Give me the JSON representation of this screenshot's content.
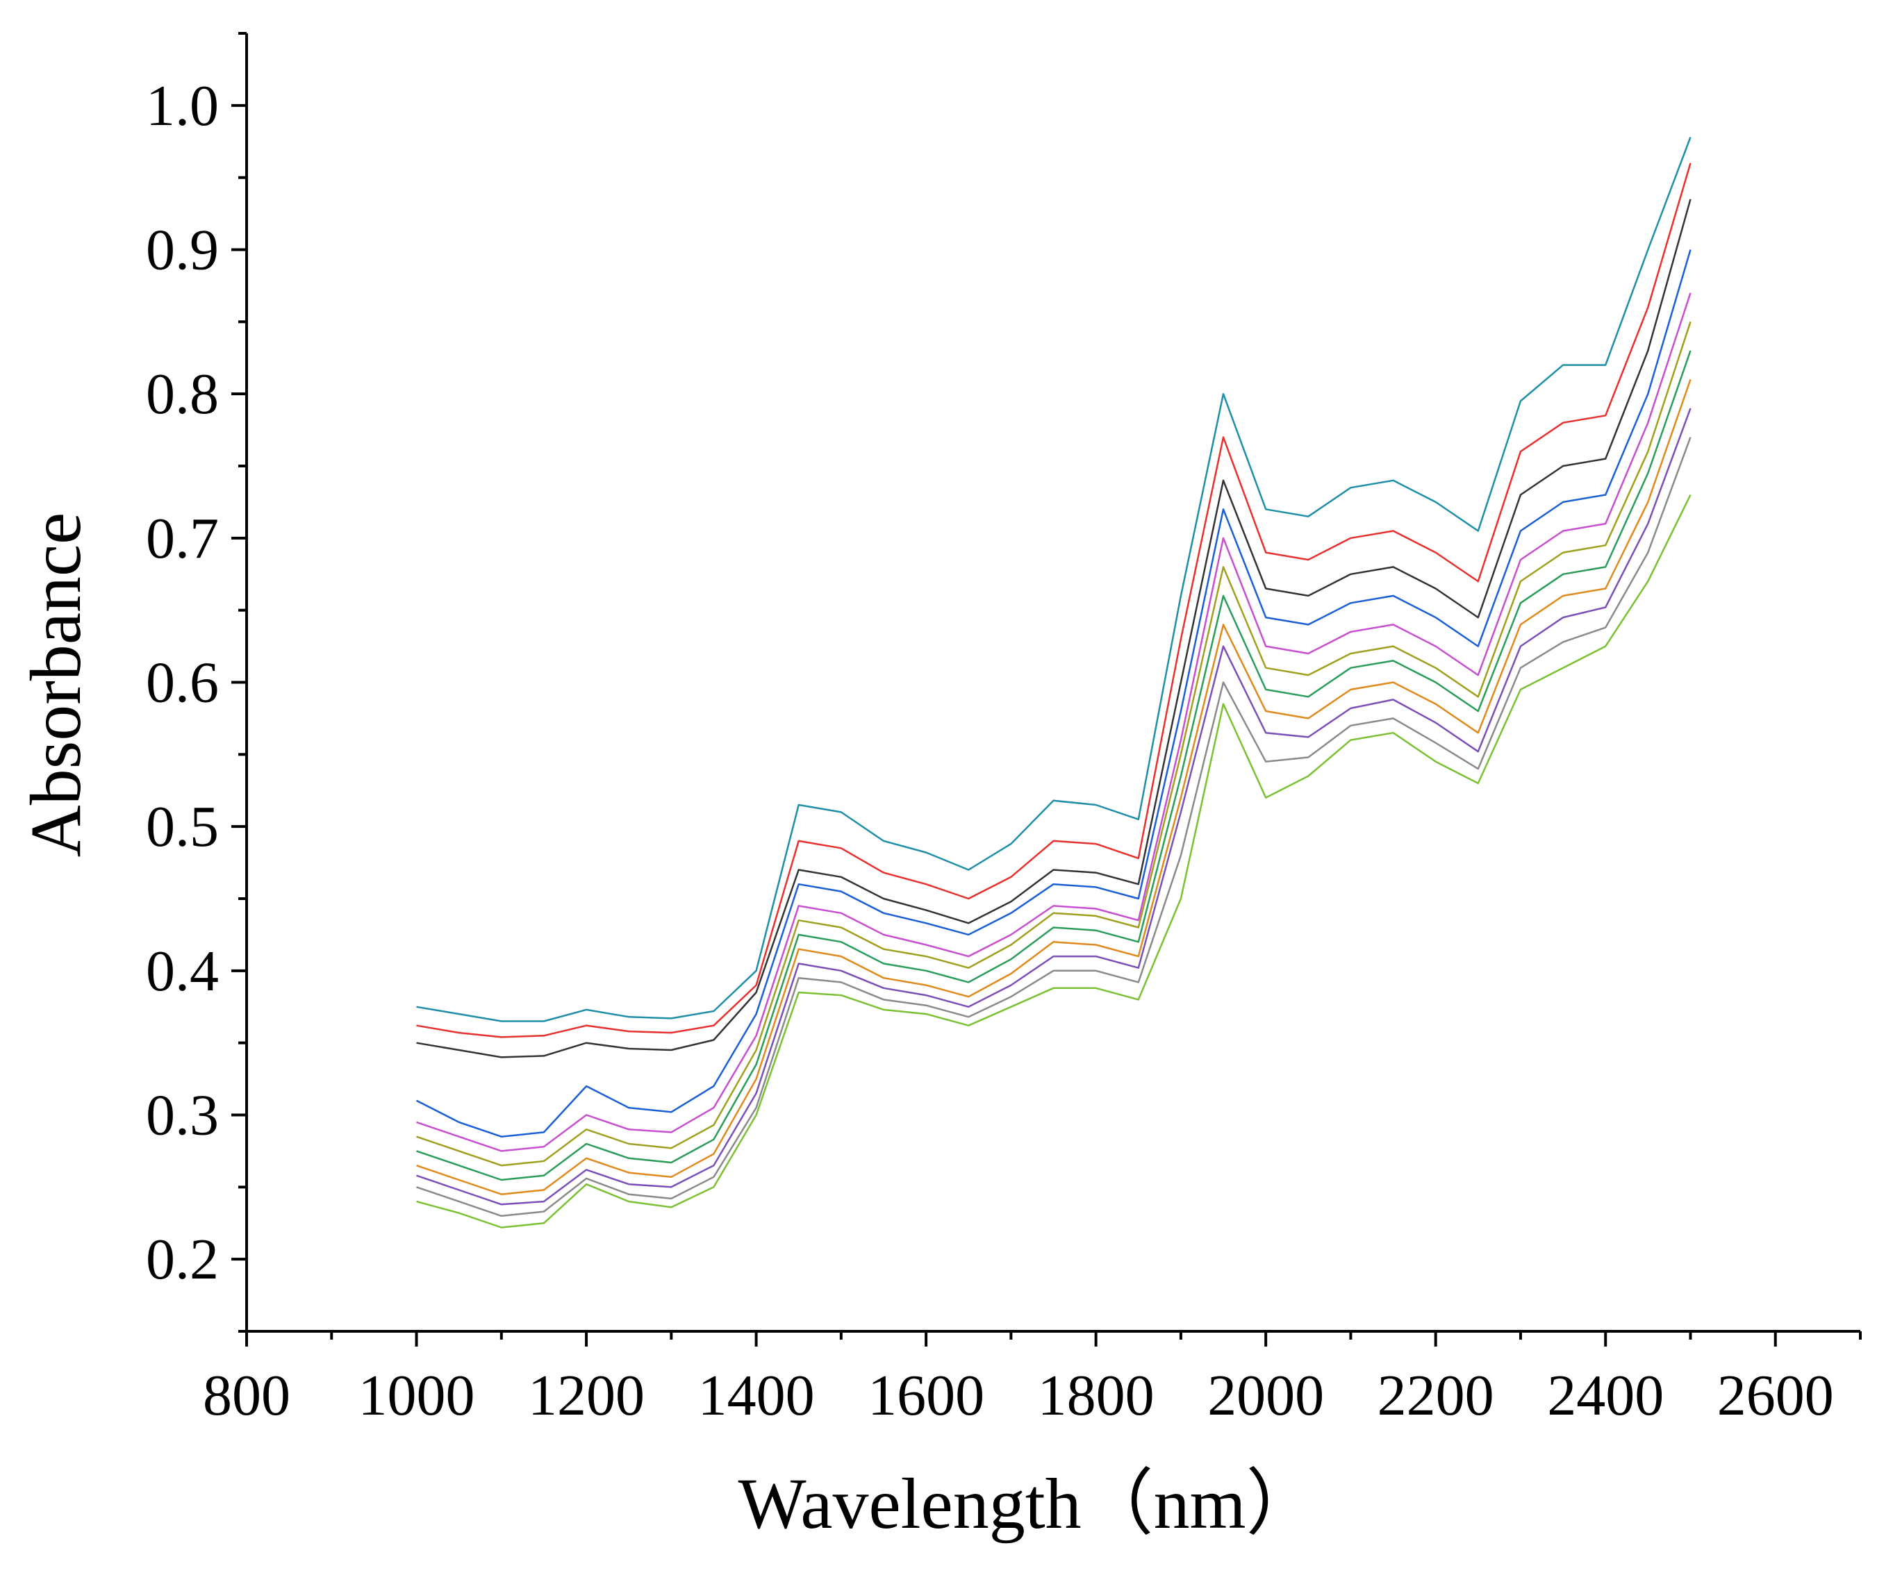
{
  "chart_data": {
    "type": "line",
    "x_label": "Wavelength（nm）",
    "y_label": "Absorbance",
    "x": [
      1000,
      1050,
      1100,
      1150,
      1200,
      1250,
      1300,
      1350,
      1400,
      1450,
      1500,
      1550,
      1600,
      1650,
      1700,
      1750,
      1800,
      1850,
      1900,
      1950,
      2000,
      2050,
      2100,
      2150,
      2200,
      2250,
      2300,
      2350,
      2400,
      2450,
      2500
    ],
    "xlim": [
      800,
      2700
    ],
    "xticks": [
      800,
      1000,
      1200,
      1400,
      1600,
      1800,
      2000,
      2200,
      2400,
      2600
    ],
    "ylim": [
      0.15,
      1.05
    ],
    "yticks": [
      0.2,
      0.3,
      0.4,
      0.5,
      0.6,
      0.7,
      0.8,
      0.9,
      {
        "value": 1,
        "label": "1.0"
      }
    ],
    "series": [
      {
        "color": "#1f8fa8",
        "values": [
          0.375,
          0.37,
          0.365,
          0.365,
          0.373,
          0.368,
          0.367,
          0.372,
          0.4,
          0.515,
          0.51,
          0.49,
          0.482,
          0.47,
          0.488,
          0.518,
          0.515,
          0.505,
          0.66,
          0.8,
          0.72,
          0.715,
          0.735,
          0.74,
          0.725,
          0.705,
          0.795,
          0.82,
          0.82,
          0.9,
          0.978
        ]
      },
      {
        "color": "#e8312f",
        "values": [
          0.362,
          0.357,
          0.354,
          0.355,
          0.362,
          0.358,
          0.357,
          0.362,
          0.39,
          0.49,
          0.485,
          0.468,
          0.46,
          0.45,
          0.465,
          0.49,
          0.488,
          0.478,
          0.63,
          0.77,
          0.69,
          0.685,
          0.7,
          0.705,
          0.69,
          0.67,
          0.76,
          0.78,
          0.785,
          0.86,
          0.96
        ]
      },
      {
        "color": "#333333",
        "values": [
          0.35,
          0.345,
          0.34,
          0.341,
          0.35,
          0.346,
          0.345,
          0.352,
          0.385,
          0.47,
          0.465,
          0.45,
          0.442,
          0.433,
          0.448,
          0.47,
          0.468,
          0.46,
          0.6,
          0.74,
          0.665,
          0.66,
          0.675,
          0.68,
          0.665,
          0.645,
          0.73,
          0.75,
          0.755,
          0.83,
          0.935
        ]
      },
      {
        "color": "#1a5fd6",
        "values": [
          0.31,
          0.295,
          0.285,
          0.288,
          0.32,
          0.305,
          0.302,
          0.32,
          0.37,
          0.46,
          0.455,
          0.44,
          0.433,
          0.425,
          0.44,
          0.46,
          0.458,
          0.45,
          0.58,
          0.72,
          0.645,
          0.64,
          0.655,
          0.66,
          0.645,
          0.625,
          0.705,
          0.725,
          0.73,
          0.8,
          0.9
        ]
      },
      {
        "color": "#c84fd0",
        "values": [
          0.295,
          0.285,
          0.275,
          0.278,
          0.3,
          0.29,
          0.288,
          0.305,
          0.355,
          0.445,
          0.44,
          0.425,
          0.418,
          0.41,
          0.425,
          0.445,
          0.443,
          0.435,
          0.56,
          0.7,
          0.625,
          0.62,
          0.635,
          0.64,
          0.625,
          0.605,
          0.685,
          0.705,
          0.71,
          0.78,
          0.87
        ]
      },
      {
        "color": "#a0a020",
        "values": [
          0.285,
          0.275,
          0.265,
          0.268,
          0.29,
          0.28,
          0.277,
          0.293,
          0.345,
          0.435,
          0.43,
          0.415,
          0.41,
          0.402,
          0.418,
          0.44,
          0.438,
          0.43,
          0.55,
          0.68,
          0.61,
          0.605,
          0.62,
          0.625,
          0.61,
          0.59,
          0.67,
          0.69,
          0.695,
          0.76,
          0.85
        ]
      },
      {
        "color": "#2a9d5a",
        "values": [
          0.275,
          0.265,
          0.255,
          0.258,
          0.28,
          0.27,
          0.267,
          0.283,
          0.335,
          0.425,
          0.42,
          0.405,
          0.4,
          0.392,
          0.408,
          0.43,
          0.428,
          0.42,
          0.535,
          0.66,
          0.595,
          0.59,
          0.61,
          0.615,
          0.6,
          0.58,
          0.655,
          0.675,
          0.68,
          0.745,
          0.83
        ]
      },
      {
        "color": "#e08a1e",
        "values": [
          0.265,
          0.255,
          0.245,
          0.248,
          0.27,
          0.26,
          0.257,
          0.273,
          0.325,
          0.415,
          0.41,
          0.395,
          0.39,
          0.382,
          0.398,
          0.42,
          0.418,
          0.41,
          0.52,
          0.64,
          0.58,
          0.575,
          0.595,
          0.6,
          0.585,
          0.565,
          0.64,
          0.66,
          0.665,
          0.725,
          0.81
        ]
      },
      {
        "color": "#7b4fb8",
        "values": [
          0.258,
          0.248,
          0.238,
          0.24,
          0.262,
          0.252,
          0.25,
          0.265,
          0.315,
          0.405,
          0.4,
          0.388,
          0.383,
          0.375,
          0.39,
          0.41,
          0.41,
          0.402,
          0.51,
          0.625,
          0.565,
          0.562,
          0.582,
          0.588,
          0.572,
          0.552,
          0.625,
          0.645,
          0.652,
          0.71,
          0.79
        ]
      },
      {
        "color": "#8a8a8a",
        "values": [
          0.25,
          0.24,
          0.23,
          0.233,
          0.256,
          0.245,
          0.242,
          0.257,
          0.305,
          0.395,
          0.392,
          0.38,
          0.376,
          0.368,
          0.382,
          0.4,
          0.4,
          0.392,
          0.48,
          0.6,
          0.545,
          0.548,
          0.57,
          0.575,
          0.558,
          0.54,
          0.61,
          0.628,
          0.638,
          0.69,
          0.77
        ]
      },
      {
        "color": "#7cc033",
        "values": [
          0.24,
          0.232,
          0.222,
          0.225,
          0.252,
          0.24,
          0.236,
          0.25,
          0.3,
          0.385,
          0.383,
          0.373,
          0.37,
          0.362,
          0.375,
          0.388,
          0.388,
          0.38,
          0.45,
          0.585,
          0.52,
          0.535,
          0.56,
          0.565,
          0.545,
          0.53,
          0.595,
          0.61,
          0.625,
          0.67,
          0.73
        ]
      }
    ]
  }
}
